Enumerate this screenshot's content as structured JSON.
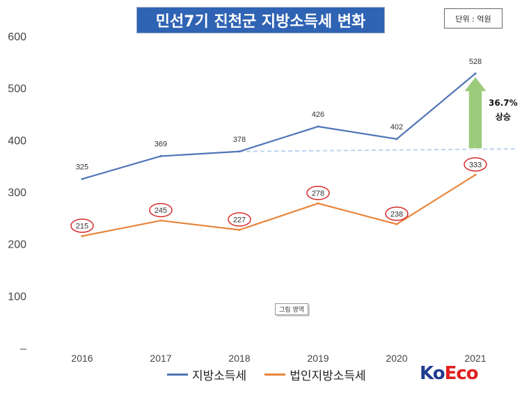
{
  "title": "민선7기 진천군 지방소득세 변화",
  "unit_label": "단위 : 억원",
  "plot_area_label": "그림 영역",
  "rise_annotation": {
    "percent": "36.7%",
    "text": "상승"
  },
  "logo": {
    "k": "K",
    "o": "o",
    "e": "E",
    "co": "co"
  },
  "colors": {
    "local_income_tax": "#4f74b6",
    "corporate_local_income_tax": "#e8843a",
    "arrow_fill": "#9ccb7c",
    "circle": "#d42a2a",
    "dashed": "#bcd3ee"
  },
  "chart_data": {
    "type": "line",
    "categories": [
      "2016",
      "2017",
      "2018",
      "2019",
      "2020",
      "2021"
    ],
    "ylim": [
      0,
      600
    ],
    "yticks": [
      "–",
      "100",
      "200",
      "300",
      "400",
      "500",
      "600"
    ],
    "grid": false,
    "legend_position": "bottom",
    "series": [
      {
        "name": "지방소득세",
        "values": [
          325,
          369,
          378,
          426,
          402,
          528
        ]
      },
      {
        "name": "법인지방소득세",
        "values": [
          215,
          245,
          227,
          278,
          238,
          333
        ]
      }
    ],
    "reference_value": 383
  }
}
